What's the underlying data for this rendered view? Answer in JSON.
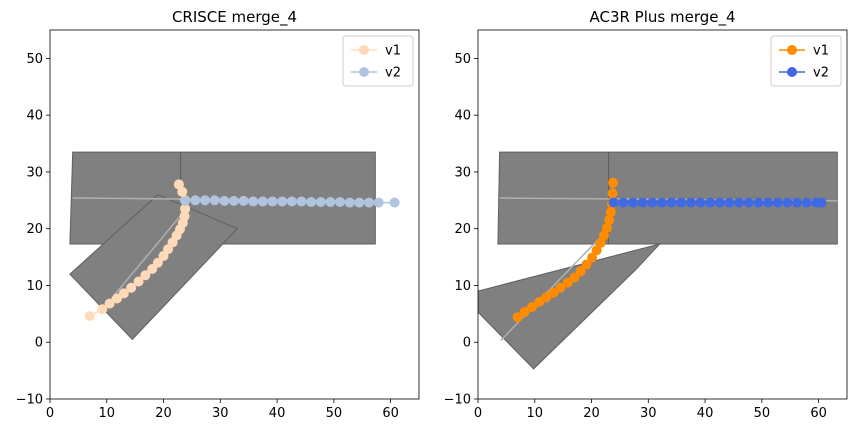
{
  "chart_data": [
    {
      "type": "scatter",
      "title": "CRISCE merge_4",
      "xlim": [
        0,
        65
      ],
      "ylim": [
        -10,
        55
      ],
      "xticks": [
        "0",
        "10",
        "20",
        "30",
        "40",
        "50",
        "60"
      ],
      "yticks": [
        "−10",
        "0",
        "10",
        "20",
        "30",
        "40",
        "50"
      ],
      "legend_position": "top-right",
      "road_color": "#808080",
      "roads": [
        [
          [
            4,
            33.5
          ],
          [
            23,
            33.5
          ],
          [
            23,
            17.3
          ],
          [
            3.5,
            17.3
          ]
        ],
        [
          [
            23,
            33.5
          ],
          [
            57.3,
            33.5
          ],
          [
            57.3,
            17.3
          ],
          [
            23,
            17.3
          ]
        ],
        [
          [
            3.5,
            12
          ],
          [
            19,
            26
          ],
          [
            33,
            20
          ],
          [
            14.5,
            0.5
          ]
        ]
      ],
      "lanes": [
        [
          [
            4,
            25.4
          ],
          [
            57.3,
            24.9
          ]
        ],
        [
          [
            9,
            5.5
          ],
          [
            24,
            23.5
          ]
        ]
      ],
      "series": [
        {
          "name": "v1",
          "color": "#ffdab9",
          "x": [
            7.0,
            9.2,
            10.5,
            11.8,
            13.0,
            14.3,
            15.6,
            16.8,
            18.0,
            19.0,
            20.0,
            20.8,
            21.6,
            22.3,
            22.9,
            23.4,
            23.7,
            23.8,
            23.8,
            23.3,
            22.7
          ],
          "y": [
            4.6,
            5.8,
            6.8,
            7.7,
            8.6,
            9.6,
            10.7,
            11.8,
            12.9,
            14.0,
            15.2,
            16.4,
            17.6,
            18.8,
            19.9,
            21.0,
            22.2,
            23.5,
            25.0,
            26.5,
            27.8
          ]
        },
        {
          "name": "v2",
          "color": "#b0c4de",
          "x": [
            23.8,
            25.6,
            27.3,
            29.0,
            30.7,
            32.4,
            34.1,
            35.8,
            37.5,
            39.2,
            40.9,
            42.6,
            44.3,
            46.0,
            47.7,
            49.4,
            51.1,
            52.8,
            54.5,
            56.2,
            57.9,
            60.7
          ],
          "y": [
            24.9,
            25.0,
            25.0,
            25.0,
            24.9,
            24.9,
            24.9,
            24.8,
            24.8,
            24.8,
            24.8,
            24.8,
            24.8,
            24.7,
            24.7,
            24.7,
            24.7,
            24.6,
            24.6,
            24.6,
            24.6,
            24.6
          ]
        }
      ]
    },
    {
      "type": "scatter",
      "title": "AC3R Plus merge_4",
      "xlim": [
        0,
        65
      ],
      "ylim": [
        -10,
        55
      ],
      "xticks": [
        "0",
        "10",
        "20",
        "30",
        "40",
        "50",
        "60"
      ],
      "yticks": [
        "−10",
        "0",
        "10",
        "20",
        "30",
        "40",
        "50"
      ],
      "legend_position": "top-right",
      "road_color": "#808080",
      "roads": [
        [
          [
            3.8,
            33.5
          ],
          [
            23,
            33.5
          ],
          [
            23,
            17.3
          ],
          [
            3.5,
            17.3
          ]
        ],
        [
          [
            23,
            33.5
          ],
          [
            63.3,
            33.5
          ],
          [
            63.3,
            17.3
          ],
          [
            23,
            17.3
          ]
        ],
        [
          [
            0,
            9
          ],
          [
            0,
            5.3
          ],
          [
            9.8,
            -4.7
          ],
          [
            28,
            13
          ],
          [
            32,
            17.3
          ]
        ]
      ],
      "lanes": [
        [
          [
            3.8,
            25.4
          ],
          [
            63.3,
            24.9
          ]
        ],
        [
          [
            4,
            0.3
          ],
          [
            23.5,
            20.5
          ]
        ]
      ],
      "series": [
        {
          "name": "v1",
          "color": "#ff8c00",
          "x": [
            7.0,
            8.2,
            9.5,
            10.8,
            12.0,
            13.3,
            14.5,
            15.8,
            17.0,
            18.1,
            19.1,
            20.1,
            20.9,
            21.6,
            22.2,
            22.7,
            23.1,
            23.4,
            23.6,
            23.7,
            23.8
          ],
          "y": [
            4.4,
            5.3,
            6.2,
            7.1,
            7.9,
            8.7,
            9.6,
            10.5,
            11.4,
            12.5,
            13.7,
            14.9,
            16.2,
            17.5,
            18.8,
            20.1,
            21.5,
            22.9,
            24.3,
            26.2,
            28.1
          ]
        },
        {
          "name": "v2",
          "color": "#4169e1",
          "x": [
            23.9,
            25.6,
            27.3,
            29.0,
            30.7,
            32.4,
            34.1,
            35.8,
            37.5,
            39.2,
            40.9,
            42.6,
            44.3,
            46.0,
            47.7,
            49.4,
            51.1,
            52.8,
            54.5,
            56.2,
            57.9,
            59.6,
            60.5
          ],
          "y": [
            24.6,
            24.6,
            24.6,
            24.6,
            24.6,
            24.6,
            24.6,
            24.6,
            24.6,
            24.6,
            24.6,
            24.6,
            24.6,
            24.6,
            24.6,
            24.6,
            24.6,
            24.6,
            24.6,
            24.6,
            24.6,
            24.6,
            24.6
          ]
        }
      ]
    }
  ]
}
